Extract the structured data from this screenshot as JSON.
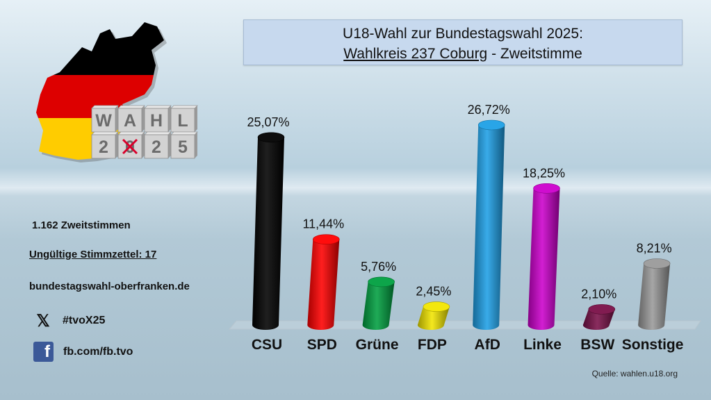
{
  "title": {
    "line1": "U18-Wahl zur Bundestagswahl 2025:",
    "district": "Wahlkreis 237 Coburg",
    "line2_suffix": " - Zweitstimme"
  },
  "logo": {
    "word_letters": [
      "W",
      "A",
      "H",
      "L"
    ],
    "year_letters": [
      "2",
      "0",
      "2",
      "5"
    ]
  },
  "info": {
    "votes": "1.162 Zweitstimmen",
    "invalid": "Ungültige Stimmzettel: 17",
    "website": "bundestagswahl-oberfranken.de",
    "hashtag": "#tvoX25",
    "facebook": "fb.com/fb.tvo"
  },
  "icons": {
    "x": "x-icon",
    "facebook": "facebook-icon",
    "logo": "germany-map-logo"
  },
  "source": "Quelle: wahlen.u18.org",
  "chart_data": {
    "type": "bar",
    "categories": [
      "CSU",
      "SPD",
      "Grüne",
      "FDP",
      "AfD",
      "Linke",
      "BSW",
      "Sonstige"
    ],
    "values": [
      25.07,
      11.44,
      5.76,
      2.45,
      26.72,
      18.25,
      2.1,
      8.21
    ],
    "value_labels": [
      "25,07%",
      "11,44%",
      "5,76%",
      "2,45%",
      "26,72%",
      "18,25%",
      "2,10%",
      "8,21%"
    ],
    "colors": [
      "#000000",
      "#ff0000",
      "#00a040",
      "#f2e600",
      "#1ea0e6",
      "#cc00cc",
      "#7a1048",
      "#9a9a9a"
    ],
    "ylim": [
      0,
      26.72
    ],
    "grid": false,
    "legend": "none"
  }
}
